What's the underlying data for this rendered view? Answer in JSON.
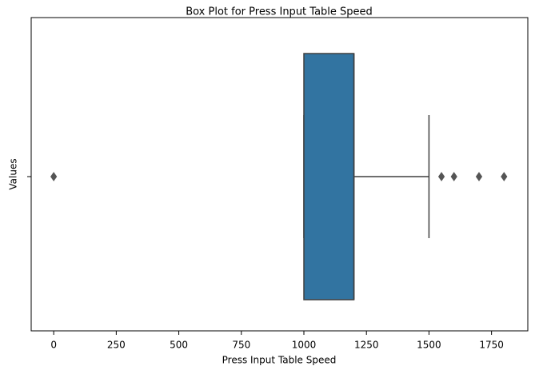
{
  "chart_data": {
    "type": "box",
    "title": "Box Plot for Press Input Table Speed",
    "xlabel": "Press Input Table Speed",
    "ylabel": "Values",
    "color": "#3274a1",
    "outlier_color": "#555555",
    "xlim": [
      -90,
      1895
    ],
    "xticks": [
      0,
      250,
      500,
      750,
      1000,
      1250,
      1500,
      1750
    ],
    "boxes": [
      {
        "min": 1000,
        "q1": 1000,
        "median": 1200,
        "q3": 1200,
        "max": 1500,
        "outliers": [
          0,
          1550,
          1600,
          1700,
          1800
        ]
      }
    ]
  }
}
